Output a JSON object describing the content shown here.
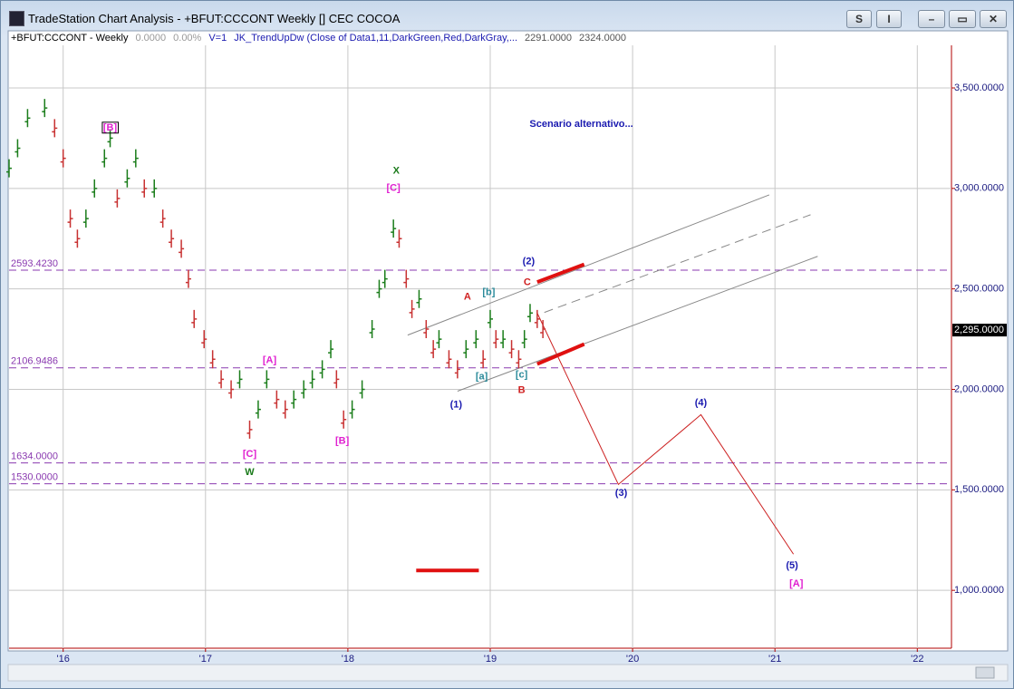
{
  "window_title": "TradeStation Chart Analysis - +BFUT:CCCONT Weekly [] CEC COCOA",
  "buttons": [
    "S",
    "I"
  ],
  "chart_data": {
    "type": "price_bars",
    "header": [
      "+BFUT:CCCONT - Weekly",
      "0.0000",
      "0.00%",
      "V=1",
      "JK_TrendUpDw (Close of Data1,11,DarkGreen,Red,DarkGray,...",
      "2291.0000",
      "2324.0000"
    ],
    "x": [
      2015.62,
      2015.68,
      2015.75,
      2015.87,
      2015.94,
      2016.0,
      2016.05,
      2016.1,
      2016.16,
      2016.22,
      2016.29,
      2016.33,
      2016.38,
      2016.45,
      2016.51,
      2016.57,
      2016.64,
      2016.7,
      2016.76,
      2016.83,
      2016.88,
      2016.92,
      2016.99,
      2017.05,
      2017.11,
      2017.18,
      2017.24,
      2017.31,
      2017.37,
      2017.43,
      2017.5,
      2017.56,
      2017.62,
      2017.69,
      2017.75,
      2017.82,
      2017.88,
      2017.92,
      2017.97,
      2018.03,
      2018.1,
      2018.17,
      2018.22,
      2018.26,
      2018.32,
      2018.36,
      2018.41,
      2018.45,
      2018.5,
      2018.55,
      2018.6,
      2018.64,
      2018.71,
      2018.77,
      2018.83,
      2018.9,
      2018.95,
      2019.0,
      2019.04,
      2019.09,
      2019.15,
      2019.2,
      2019.24,
      2019.28,
      2019.33,
      2019.37
    ],
    "values": [
      3100,
      3200,
      3350,
      3400,
      3300,
      3150,
      2850,
      2750,
      2850,
      3000,
      3150,
      3250,
      2950,
      3050,
      3150,
      3000,
      3000,
      2850,
      2750,
      2700,
      2550,
      2350,
      2250,
      2150,
      2050,
      2000,
      2050,
      1800,
      1900,
      2050,
      1950,
      1900,
      1950,
      2000,
      2050,
      2100,
      2200,
      2050,
      1850,
      1900,
      2000,
      2300,
      2500,
      2550,
      2800,
      2750,
      2550,
      2400,
      2450,
      2300,
      2200,
      2250,
      2150,
      2100,
      2200,
      2250,
      2150,
      2350,
      2250,
      2250,
      2200,
      2150,
      2250,
      2380,
      2350,
      2300
    ],
    "up_color": "#1b7d1b",
    "down_color": "#c83232",
    "xlim": [
      2015.62,
      2022.24
    ],
    "ylim": [
      712,
      3712
    ],
    "xticks": [
      {
        "value": 2016,
        "label": "'16"
      },
      {
        "value": 2017,
        "label": "'17"
      },
      {
        "value": 2018,
        "label": "'18"
      },
      {
        "value": 2019,
        "label": "'19"
      },
      {
        "value": 2020,
        "label": "'20"
      },
      {
        "value": 2021,
        "label": "'21"
      },
      {
        "value": 2022,
        "label": "'22"
      }
    ],
    "yticks": [
      {
        "value": 1000,
        "label": "1,000.0000"
      },
      {
        "value": 1500,
        "label": "1,500.0000"
      },
      {
        "value": 2000,
        "label": "2,000.0000"
      },
      {
        "value": 2500,
        "label": "2,500.0000"
      },
      {
        "value": 3000,
        "label": "3,000.0000"
      },
      {
        "value": 3500,
        "label": "3,500.0000"
      }
    ],
    "grid": true,
    "last_price": {
      "value": 2295,
      "label": "2,295.0000"
    },
    "levels": [
      {
        "value": 2593.423,
        "label": "2593.4230"
      },
      {
        "value": 2106.9486,
        "label": "2106.9486"
      },
      {
        "value": 1634,
        "label": "1634.0000"
      },
      {
        "value": 1530,
        "label": "1530.0000"
      }
    ],
    "level_color": "#8a3ab0",
    "lines": [
      {
        "x": [
          2018.42,
          2020.96
        ],
        "y": [
          2270,
          2968
        ],
        "color": "#888888",
        "dashed": false,
        "width": 1
      },
      {
        "x": [
          2018.77,
          2021.3
        ],
        "y": [
          1991,
          2662
        ],
        "color": "#888888",
        "dashed": false,
        "width": 1
      },
      {
        "x": [
          2019.38,
          2021.25
        ],
        "y": [
          2383,
          2869
        ],
        "color": "#888888",
        "dashed": true,
        "width": 1
      },
      {
        "x": [
          2019.33,
          2019.66
        ],
        "y": [
          2534,
          2622
        ],
        "color": "#e01010",
        "dashed": false,
        "width": 4
      },
      {
        "x": [
          2019.33,
          2019.66
        ],
        "y": [
          2126,
          2225
        ],
        "color": "#e01010",
        "dashed": false,
        "width": 4
      },
      {
        "x": [
          2018.48,
          2018.92
        ],
        "y": [
          1099,
          1099
        ],
        "color": "#e01010",
        "dashed": false,
        "width": 4
      },
      {
        "x": [
          2019.33,
          2019.9,
          2020.48,
          2021.13
        ],
        "y": [
          2380,
          1527,
          1874,
          1180
        ],
        "color": "#cc2020",
        "dashed": false,
        "width": 1
      }
    ],
    "annotations": [
      {
        "text": "Scenario alternativo...",
        "x": 2019.64,
        "y": 3320,
        "color": "#1a1ab0",
        "size": 18,
        "boxed": false
      },
      {
        "text": "[B]",
        "x": 2016.33,
        "y": 3302,
        "color": "#e020d0",
        "size": 17,
        "boxed": true
      },
      {
        "text": "X",
        "x": 2018.34,
        "y": 3086,
        "color": "#1a7a1a",
        "size": 18,
        "boxed": false
      },
      {
        "text": "[C]",
        "x": 2018.32,
        "y": 3000,
        "color": "#e020d0",
        "size": 17,
        "boxed": false
      },
      {
        "text": "[A]",
        "x": 2017.45,
        "y": 2144,
        "color": "#e020d0",
        "size": 17,
        "boxed": false
      },
      {
        "text": "[C]",
        "x": 2017.31,
        "y": 1676,
        "color": "#e020d0",
        "size": 17,
        "boxed": false
      },
      {
        "text": "W",
        "x": 2017.31,
        "y": 1586,
        "color": "#1a7a1a",
        "size": 18,
        "boxed": false
      },
      {
        "text": "[B]",
        "x": 2017.96,
        "y": 1743,
        "color": "#e020d0",
        "size": 17,
        "boxed": false
      },
      {
        "text": "A",
        "x": 2018.84,
        "y": 2459,
        "color": "#d02020",
        "size": 12,
        "boxed": false
      },
      {
        "text": "[b]",
        "x": 2018.99,
        "y": 2482,
        "color": "#2a8a9a",
        "size": 12,
        "boxed": false
      },
      {
        "text": "(2)",
        "x": 2019.27,
        "y": 2635,
        "color": "#1a1ab0",
        "size": 13,
        "boxed": false
      },
      {
        "text": "C",
        "x": 2019.26,
        "y": 2532,
        "color": "#d02020",
        "size": 12,
        "boxed": false
      },
      {
        "text": "[a]",
        "x": 2018.94,
        "y": 2063,
        "color": "#2a8a9a",
        "size": 12,
        "boxed": false
      },
      {
        "text": "[c]",
        "x": 2019.22,
        "y": 2072,
        "color": "#2a8a9a",
        "size": 12,
        "boxed": false
      },
      {
        "text": "B",
        "x": 2019.22,
        "y": 1995,
        "color": "#d02020",
        "size": 12,
        "boxed": false
      },
      {
        "text": "(1)",
        "x": 2018.76,
        "y": 1923,
        "color": "#1a1ab0",
        "size": 13,
        "boxed": false
      },
      {
        "text": "(4)",
        "x": 2020.48,
        "y": 1932,
        "color": "#1a1ab0",
        "size": 13,
        "boxed": false
      },
      {
        "text": "(3)",
        "x": 2019.92,
        "y": 1482,
        "color": "#1a1ab0",
        "size": 13,
        "boxed": false
      },
      {
        "text": "(5)",
        "x": 2021.12,
        "y": 1122,
        "color": "#1a1ab0",
        "size": 13,
        "boxed": false
      },
      {
        "text": "[A]",
        "x": 2021.15,
        "y": 1032,
        "color": "#e020d0",
        "size": 17,
        "boxed": false
      }
    ]
  }
}
